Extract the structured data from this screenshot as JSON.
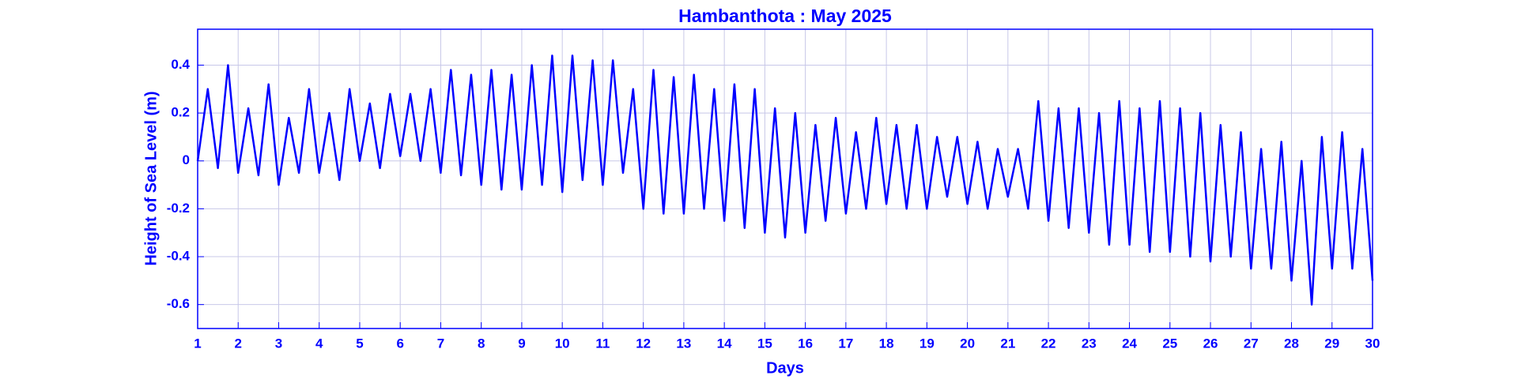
{
  "chart_data": {
    "type": "line",
    "title": "Hambanthota : May 2025",
    "x_label": "Days",
    "y_label": "Height of Sea Level (m)",
    "color": "#0000ff",
    "grid": true,
    "xlim": [
      1,
      30
    ],
    "xticks": [
      1,
      2,
      3,
      4,
      5,
      6,
      7,
      8,
      9,
      10,
      11,
      12,
      13,
      14,
      15,
      16,
      17,
      18,
      19,
      20,
      21,
      22,
      23,
      24,
      25,
      26,
      27,
      28,
      29,
      30
    ],
    "ylim": [
      -0.7,
      0.55
    ],
    "yticks": [
      -0.6,
      -0.4,
      -0.2,
      0,
      0.2,
      0.4
    ],
    "x": [
      1,
      1.25,
      1.5,
      1.75,
      2,
      2.25,
      2.5,
      2.75,
      3,
      3.25,
      3.5,
      3.75,
      4,
      4.25,
      4.5,
      4.75,
      5,
      5.25,
      5.5,
      5.75,
      6,
      6.25,
      6.5,
      6.75,
      7,
      7.25,
      7.5,
      7.75,
      8,
      8.25,
      8.5,
      8.75,
      9,
      9.25,
      9.5,
      9.75,
      10,
      10.25,
      10.5,
      10.75,
      11,
      11.25,
      11.5,
      11.75,
      12,
      12.25,
      12.5,
      12.75,
      13,
      13.25,
      13.5,
      13.75,
      14,
      14.25,
      14.5,
      14.75,
      15,
      15.25,
      15.5,
      15.75,
      16,
      16.25,
      16.5,
      16.75,
      17,
      17.25,
      17.5,
      17.75,
      18,
      18.25,
      18.5,
      18.75,
      19,
      19.25,
      19.5,
      19.75,
      20,
      20.25,
      20.5,
      20.75,
      21,
      21.25,
      21.5,
      21.75,
      22,
      22.25,
      22.5,
      22.75,
      23,
      23.25,
      23.5,
      23.75,
      24,
      24.25,
      24.5,
      24.75,
      25,
      25.25,
      25.5,
      25.75,
      26,
      26.25,
      26.5,
      26.75,
      27,
      27.25,
      27.5,
      27.75,
      28,
      28.25,
      28.5,
      28.75,
      29,
      29.25,
      29.5,
      29.75,
      30
    ],
    "values": [
      0.0,
      0.3,
      -0.03,
      0.4,
      -0.05,
      0.22,
      -0.06,
      0.32,
      -0.1,
      0.18,
      -0.05,
      0.3,
      -0.05,
      0.2,
      -0.08,
      0.3,
      0.0,
      0.24,
      -0.03,
      0.28,
      0.02,
      0.28,
      0.0,
      0.3,
      -0.05,
      0.38,
      -0.06,
      0.36,
      -0.1,
      0.38,
      -0.12,
      0.36,
      -0.12,
      0.4,
      -0.1,
      0.44,
      -0.13,
      0.44,
      -0.08,
      0.42,
      -0.1,
      0.42,
      -0.05,
      0.3,
      -0.2,
      0.38,
      -0.22,
      0.35,
      -0.22,
      0.36,
      -0.2,
      0.3,
      -0.25,
      0.32,
      -0.28,
      0.3,
      -0.3,
      0.22,
      -0.32,
      0.2,
      -0.3,
      0.15,
      -0.25,
      0.18,
      -0.22,
      0.12,
      -0.2,
      0.18,
      -0.18,
      0.15,
      -0.2,
      0.15,
      -0.2,
      0.1,
      -0.15,
      0.1,
      -0.18,
      0.08,
      -0.2,
      0.05,
      -0.15,
      0.05,
      -0.2,
      0.25,
      -0.25,
      0.22,
      -0.28,
      0.22,
      -0.3,
      0.2,
      -0.35,
      0.25,
      -0.35,
      0.22,
      -0.38,
      0.25,
      -0.38,
      0.22,
      -0.4,
      0.2,
      -0.42,
      0.15,
      -0.4,
      0.12,
      -0.45,
      0.05,
      -0.45,
      0.08,
      -0.5,
      0.0,
      -0.6,
      0.1,
      -0.45,
      0.12,
      -0.45,
      0.05,
      -0.5
    ]
  }
}
